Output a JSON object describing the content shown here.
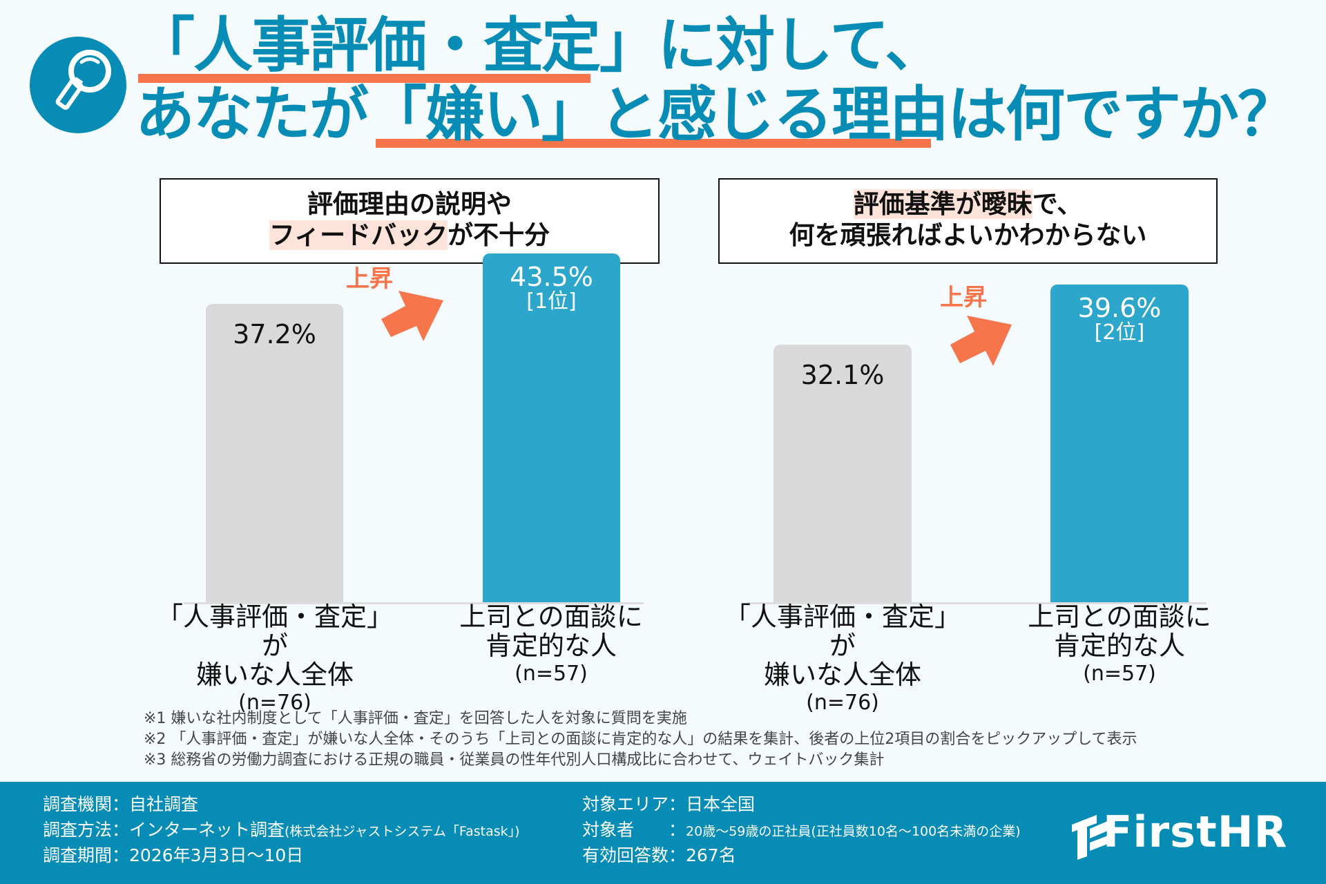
{
  "title": {
    "line1_prefix": "「人事評価・査定」",
    "line1_suffix": "に対して、",
    "line2_a": "あなたが",
    "line2_b": "「嫌い」と感じる理由",
    "line2_c": "は何ですか？",
    "icon": "magnifier-icon"
  },
  "colors": {
    "primary": "#078DB5",
    "accent": "#F7754A",
    "bar_all": "#D9D9D9",
    "bar_positive": "#2CA6CB",
    "highlight": "#FDE3DA"
  },
  "chart_data": [
    {
      "type": "bar",
      "title_line1": "評価理由の説明や",
      "title_line2_highlight": "フィードバック",
      "title_line2_rest": "が不十分",
      "categories": [
        {
          "line1": "「人事評価・査定」が",
          "line2": "嫌いな人全体",
          "n": "(n=76)"
        },
        {
          "line1": "上司との面談に",
          "line2": "肯定的な人",
          "n": "(n=57)"
        }
      ],
      "values": [
        37.2,
        43.5
      ],
      "value_labels": [
        "37.2%",
        "43.5%"
      ],
      "rank_label": "[1位]",
      "annotation": "上昇",
      "ylim": [
        0,
        50
      ]
    },
    {
      "type": "bar",
      "title_line1_highlight": "評価基準が曖昧",
      "title_line1_rest": "で、",
      "title_line2": "何を頑張ればよいかわからない",
      "categories": [
        {
          "line1": "「人事評価・査定」が",
          "line2": "嫌いな人全体",
          "n": "(n=76)"
        },
        {
          "line1": "上司との面談に",
          "line2": "肯定的な人",
          "n": "(n=57)"
        }
      ],
      "values": [
        32.1,
        39.6
      ],
      "value_labels": [
        "32.1%",
        "39.6%"
      ],
      "rank_label": "[2位]",
      "annotation": "上昇",
      "ylim": [
        0,
        50
      ]
    }
  ],
  "notes": [
    "※1 嫌いな社内制度として「人事評価・査定」を回答した人を対象に質問を実施",
    "※2 「人事評価・査定」が嫌いな人全体・そのうち「上司との面談に肯定的な人」の結果を集計、後者の上位2項目の割合をピックアップして表示",
    "※3 総務省の労働力調査における正規の職員・従業員の性年代別人口構成比に合わせて、ウェイトバック集計"
  ],
  "footer": {
    "org": "調査機関：自社調査",
    "method": "調査方法：インターネット調査",
    "method_detail": "(株式会社ジャストシステム「Fastask」)",
    "period": "調査期間：2026年3月3日〜10日",
    "area": "対象エリア：日本全国",
    "target_label": "対象者　　：",
    "target": "20歳〜59歳の正社員",
    "target_detail": "(正社員数10名〜100名未満の企業)",
    "responses": "有効回答数：267名",
    "logo": "FirstHR"
  }
}
